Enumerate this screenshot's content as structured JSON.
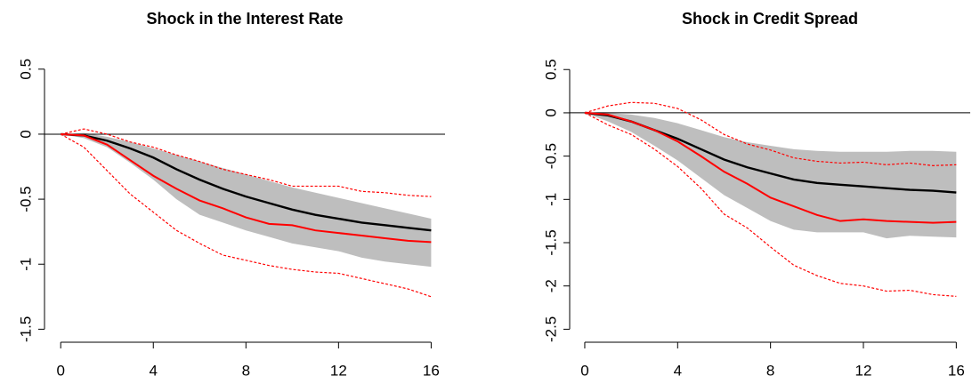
{
  "chart_data": [
    {
      "type": "line",
      "title": "Shock in the Interest Rate",
      "x": [
        0,
        1,
        2,
        3,
        4,
        5,
        6,
        7,
        8,
        9,
        10,
        11,
        12,
        13,
        14,
        15,
        16
      ],
      "xlim": [
        -0.7,
        16.6
      ],
      "xticks": [
        0,
        4,
        8,
        12,
        16
      ],
      "ylim": [
        -1.6,
        0.69
      ],
      "yticks": [
        -1.5,
        -1,
        -0.5,
        0,
        0.5
      ],
      "hline": 0,
      "band": {
        "color": "#bebebe",
        "upper": [
          0,
          0.01,
          -0.02,
          -0.06,
          -0.11,
          -0.16,
          -0.21,
          -0.26,
          -0.31,
          -0.36,
          -0.41,
          -0.45,
          -0.49,
          -0.53,
          -0.57,
          -0.61,
          -0.65
        ],
        "lower": [
          0,
          -0.03,
          -0.1,
          -0.22,
          -0.35,
          -0.5,
          -0.62,
          -0.68,
          -0.74,
          -0.79,
          -0.84,
          -0.87,
          -0.9,
          -0.95,
          -0.98,
          -1.0,
          -1.02
        ]
      },
      "series": [
        {
          "color": "#000000",
          "style": "solid",
          "values": [
            0,
            -0.01,
            -0.05,
            -0.11,
            -0.18,
            -0.27,
            -0.35,
            -0.42,
            -0.48,
            -0.53,
            -0.58,
            -0.62,
            -0.65,
            -0.68,
            -0.7,
            -0.72,
            -0.74
          ]
        },
        {
          "color": "#ff0000",
          "style": "solid",
          "values": [
            0,
            -0.01,
            -0.08,
            -0.2,
            -0.32,
            -0.42,
            -0.51,
            -0.57,
            -0.64,
            -0.69,
            -0.7,
            -0.74,
            -0.76,
            -0.78,
            -0.8,
            -0.82,
            -0.83
          ]
        },
        {
          "color": "#ff0000",
          "style": "dashed",
          "values": [
            0,
            0.04,
            0,
            -0.06,
            -0.1,
            -0.16,
            -0.21,
            -0.27,
            -0.31,
            -0.35,
            -0.4,
            -0.4,
            -0.4,
            -0.44,
            -0.45,
            -0.47,
            -0.48
          ]
        },
        {
          "color": "#ff0000",
          "style": "dashed",
          "values": [
            0,
            -0.1,
            -0.28,
            -0.46,
            -0.6,
            -0.74,
            -0.84,
            -0.93,
            -0.97,
            -1.01,
            -1.04,
            -1.06,
            -1.07,
            -1.11,
            -1.15,
            -1.19,
            -1.25
          ]
        }
      ]
    },
    {
      "type": "line",
      "title": "Shock in Credit Spread",
      "x": [
        0,
        1,
        2,
        3,
        4,
        5,
        6,
        7,
        8,
        9,
        10,
        11,
        12,
        13,
        14,
        15,
        16
      ],
      "xlim": [
        -0.65,
        16.6
      ],
      "xticks": [
        0,
        4,
        8,
        12,
        16
      ],
      "ylim": [
        -2.65,
        0.79
      ],
      "yticks": [
        -2.5,
        -2,
        -1.5,
        -1,
        -0.5,
        0,
        0.5
      ],
      "hline": 0,
      "band": {
        "color": "#bebebe",
        "upper": [
          0,
          0,
          -0.02,
          -0.06,
          -0.12,
          -0.2,
          -0.28,
          -0.34,
          -0.38,
          -0.42,
          -0.44,
          -0.45,
          -0.45,
          -0.45,
          -0.44,
          -0.44,
          -0.45
        ],
        "lower": [
          0,
          -0.1,
          -0.22,
          -0.38,
          -0.55,
          -0.75,
          -0.95,
          -1.1,
          -1.25,
          -1.35,
          -1.38,
          -1.38,
          -1.38,
          -1.45,
          -1.42,
          -1.43,
          -1.44
        ]
      },
      "series": [
        {
          "color": "#000000",
          "style": "solid",
          "values": [
            0,
            -0.03,
            -0.1,
            -0.2,
            -0.3,
            -0.42,
            -0.54,
            -0.63,
            -0.7,
            -0.77,
            -0.81,
            -0.83,
            -0.85,
            -0.87,
            -0.89,
            -0.9,
            -0.92
          ]
        },
        {
          "color": "#ff0000",
          "style": "solid",
          "values": [
            0,
            -0.02,
            -0.1,
            -0.2,
            -0.33,
            -0.5,
            -0.68,
            -0.82,
            -0.98,
            -1.08,
            -1.18,
            -1.25,
            -1.23,
            -1.25,
            -1.26,
            -1.27,
            -1.26
          ]
        },
        {
          "color": "#ff0000",
          "style": "dashed",
          "values": [
            0,
            0.08,
            0.12,
            0.11,
            0.05,
            -0.08,
            -0.25,
            -0.36,
            -0.43,
            -0.52,
            -0.56,
            -0.58,
            -0.57,
            -0.6,
            -0.58,
            -0.61,
            -0.6
          ]
        },
        {
          "color": "#ff0000",
          "style": "dashed",
          "values": [
            0,
            -0.14,
            -0.25,
            -0.42,
            -0.62,
            -0.87,
            -1.17,
            -1.33,
            -1.55,
            -1.76,
            -1.88,
            -1.97,
            -2.0,
            -2.06,
            -2.05,
            -2.1,
            -2.12
          ]
        }
      ]
    }
  ]
}
